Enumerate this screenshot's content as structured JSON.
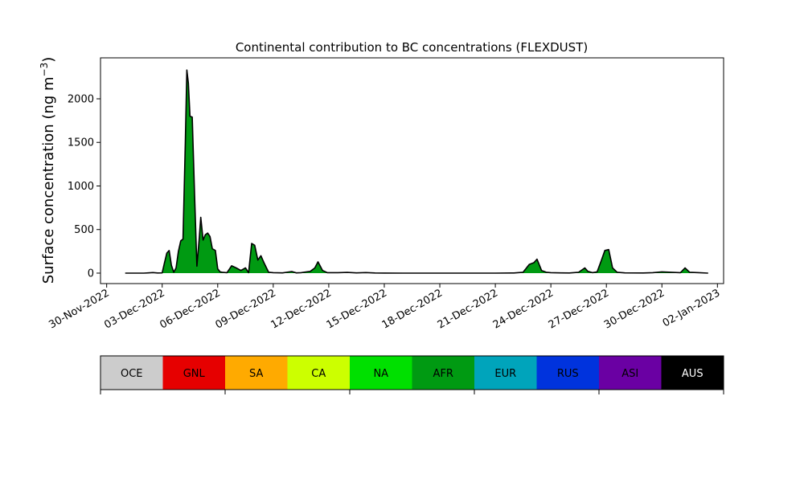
{
  "chart_data": {
    "type": "area",
    "title": "Continental contribution to BC concentrations (FLEXDUST)",
    "ylabel": "Surface concentration (ng m",
    "ylabel_sup": "−3",
    "ylabel_close": ")",
    "xlabel": "",
    "ylim": [
      -120,
      2470
    ],
    "yticks": [
      0,
      500,
      1000,
      1500,
      2000
    ],
    "xlim": [
      "2022-11-29T16:00",
      "2023-01-02T08:00"
    ],
    "xtick_labels": [
      "30-Nov-2022",
      "03-Dec-2022",
      "06-Dec-2022",
      "09-Dec-2022",
      "12-Dec-2022",
      "15-Dec-2022",
      "18-Dec-2022",
      "21-Dec-2022",
      "24-Dec-2022",
      "27-Dec-2022",
      "30-Dec-2022",
      "02-Jan-2023"
    ],
    "xtick_dates": [
      "2022-11-30",
      "2022-12-03",
      "2022-12-06",
      "2022-12-09",
      "2022-12-12",
      "2022-12-15",
      "2022-12-18",
      "2022-12-21",
      "2022-12-24",
      "2022-12-27",
      "2022-12-30",
      "2023-01-02"
    ],
    "grid": false,
    "legend_position": "colorbar-below",
    "legend": [
      {
        "name": "OCE",
        "color": "#cccccc",
        "text_color": "#000000"
      },
      {
        "name": "GNL",
        "color": "#e60000",
        "text_color": "#000000"
      },
      {
        "name": "SA",
        "color": "#ffaa00",
        "text_color": "#000000"
      },
      {
        "name": "CA",
        "color": "#ccff00",
        "text_color": "#000000"
      },
      {
        "name": "NA",
        "color": "#00e000",
        "text_color": "#000000"
      },
      {
        "name": "AFR",
        "color": "#009a12",
        "text_color": "#000000"
      },
      {
        "name": "EUR",
        "color": "#00a4bb",
        "text_color": "#000000"
      },
      {
        "name": "RUS",
        "color": "#0033dd",
        "text_color": "#000000"
      },
      {
        "name": "ASI",
        "color": "#6a00a3",
        "text_color": "#000000"
      },
      {
        "name": "AUS",
        "color": "#000000",
        "text_color": "#ffffff"
      }
    ],
    "series": [
      {
        "name": "AFR",
        "color": "#009a12",
        "outline_color": "#000000",
        "points": [
          [
            "2022-12-01T00:00",
            0
          ],
          [
            "2022-12-02T00:00",
            0
          ],
          [
            "2022-12-02T06:00",
            3
          ],
          [
            "2022-12-02T12:00",
            6
          ],
          [
            "2022-12-02T18:00",
            2
          ],
          [
            "2022-12-03T00:00",
            3
          ],
          [
            "2022-12-03T03:00",
            120
          ],
          [
            "2022-12-03T06:00",
            230
          ],
          [
            "2022-12-03T09:00",
            260
          ],
          [
            "2022-12-03T12:00",
            90
          ],
          [
            "2022-12-03T15:00",
            10
          ],
          [
            "2022-12-03T18:00",
            60
          ],
          [
            "2022-12-03T21:00",
            250
          ],
          [
            "2022-12-04T00:00",
            370
          ],
          [
            "2022-12-04T03:00",
            390
          ],
          [
            "2022-12-04T06:00",
            1500
          ],
          [
            "2022-12-04T08:00",
            2330
          ],
          [
            "2022-12-04T10:00",
            2180
          ],
          [
            "2022-12-04T12:00",
            1800
          ],
          [
            "2022-12-04T15:00",
            1790
          ],
          [
            "2022-12-04T18:00",
            900
          ],
          [
            "2022-12-04T21:00",
            80
          ],
          [
            "2022-12-05T00:00",
            400
          ],
          [
            "2022-12-05T02:00",
            640
          ],
          [
            "2022-12-05T05:00",
            380
          ],
          [
            "2022-12-05T08:00",
            440
          ],
          [
            "2022-12-05T11:00",
            460
          ],
          [
            "2022-12-05T14:00",
            420
          ],
          [
            "2022-12-05T17:00",
            280
          ],
          [
            "2022-12-05T21:00",
            260
          ],
          [
            "2022-12-06T00:00",
            50
          ],
          [
            "2022-12-06T03:00",
            15
          ],
          [
            "2022-12-06T06:00",
            10
          ],
          [
            "2022-12-06T12:00",
            5
          ],
          [
            "2022-12-06T18:00",
            85
          ],
          [
            "2022-12-07T00:00",
            60
          ],
          [
            "2022-12-07T06:00",
            30
          ],
          [
            "2022-12-07T12:00",
            60
          ],
          [
            "2022-12-07T16:00",
            5
          ],
          [
            "2022-12-07T20:00",
            340
          ],
          [
            "2022-12-08T00:00",
            320
          ],
          [
            "2022-12-08T04:00",
            150
          ],
          [
            "2022-12-08T08:00",
            200
          ],
          [
            "2022-12-08T12:00",
            120
          ],
          [
            "2022-12-08T18:00",
            10
          ],
          [
            "2022-12-09T00:00",
            5
          ],
          [
            "2022-12-09T12:00",
            3
          ],
          [
            "2022-12-10T00:00",
            18
          ],
          [
            "2022-12-10T06:00",
            3
          ],
          [
            "2022-12-10T12:00",
            5
          ],
          [
            "2022-12-11T00:00",
            20
          ],
          [
            "2022-12-11T06:00",
            60
          ],
          [
            "2022-12-11T10:00",
            130
          ],
          [
            "2022-12-11T16:00",
            30
          ],
          [
            "2022-12-11T22:00",
            5
          ],
          [
            "2022-12-12T12:00",
            5
          ],
          [
            "2022-12-13T00:00",
            8
          ],
          [
            "2022-12-13T12:00",
            3
          ],
          [
            "2022-12-14T00:00",
            6
          ],
          [
            "2022-12-14T12:00",
            2
          ],
          [
            "2022-12-15T00:00",
            1
          ],
          [
            "2022-12-16T00:00",
            0
          ],
          [
            "2022-12-18T00:00",
            0
          ],
          [
            "2022-12-21T00:00",
            0
          ],
          [
            "2022-12-22T00:00",
            2
          ],
          [
            "2022-12-22T12:00",
            10
          ],
          [
            "2022-12-22T20:00",
            100
          ],
          [
            "2022-12-23T02:00",
            120
          ],
          [
            "2022-12-23T06:00",
            160
          ],
          [
            "2022-12-23T12:00",
            30
          ],
          [
            "2022-12-23T18:00",
            10
          ],
          [
            "2022-12-24T00:00",
            5
          ],
          [
            "2022-12-24T12:00",
            3
          ],
          [
            "2022-12-25T00:00",
            2
          ],
          [
            "2022-12-25T12:00",
            10
          ],
          [
            "2022-12-25T20:00",
            60
          ],
          [
            "2022-12-26T00:00",
            20
          ],
          [
            "2022-12-26T06:00",
            5
          ],
          [
            "2022-12-26T12:00",
            15
          ],
          [
            "2022-12-26T18:00",
            160
          ],
          [
            "2022-12-26T22:00",
            260
          ],
          [
            "2022-12-27T03:00",
            270
          ],
          [
            "2022-12-27T08:00",
            60
          ],
          [
            "2022-12-27T14:00",
            10
          ],
          [
            "2022-12-28T00:00",
            3
          ],
          [
            "2022-12-29T00:00",
            2
          ],
          [
            "2022-12-29T12:00",
            5
          ],
          [
            "2022-12-30T00:00",
            15
          ],
          [
            "2022-12-30T12:00",
            10
          ],
          [
            "2022-12-31T00:00",
            5
          ],
          [
            "2022-12-31T06:00",
            60
          ],
          [
            "2022-12-31T12:00",
            10
          ],
          [
            "2023-01-01T00:00",
            5
          ],
          [
            "2023-01-01T12:00",
            0
          ]
        ]
      }
    ]
  }
}
